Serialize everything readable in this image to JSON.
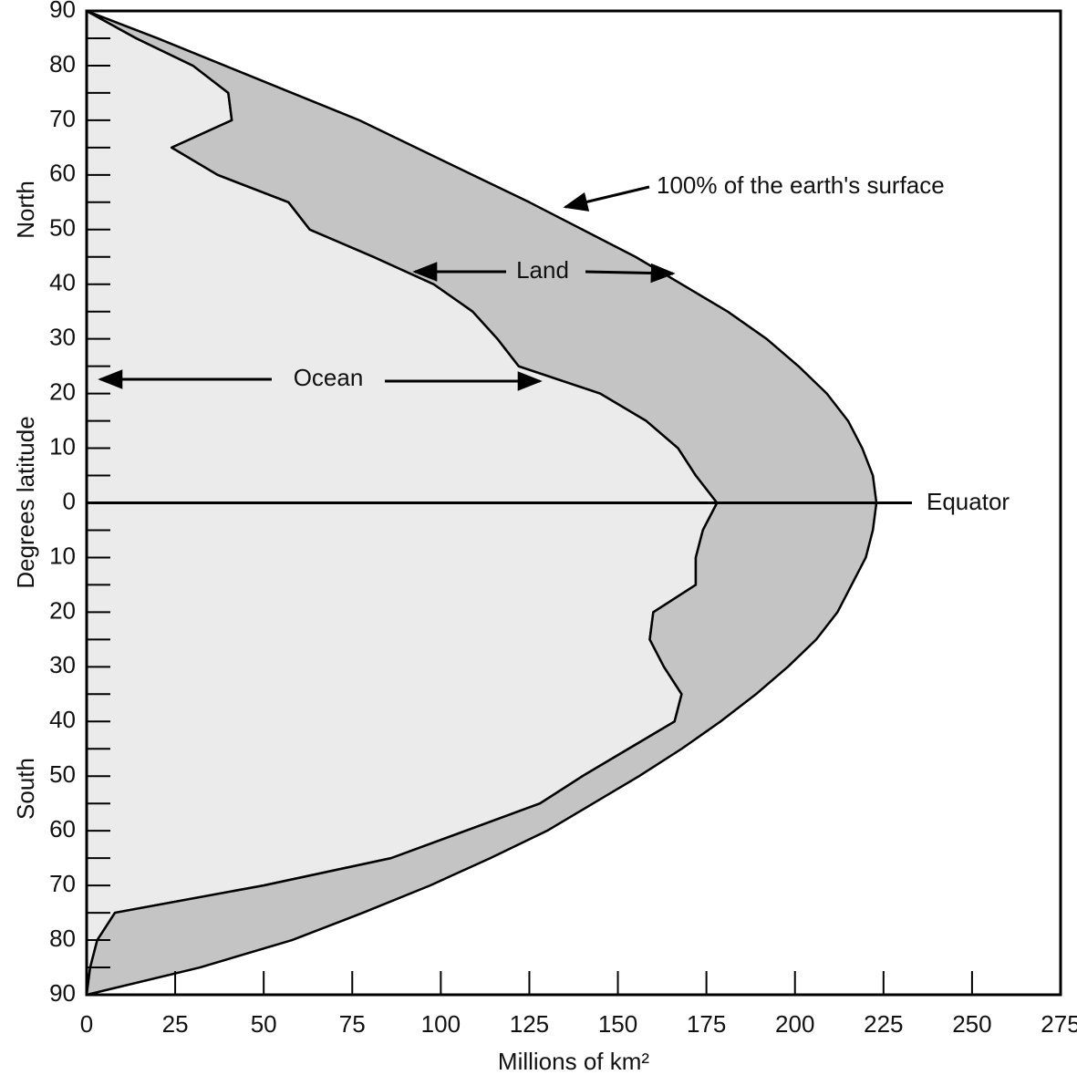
{
  "chart_data": {
    "type": "stacked-area-horizontal",
    "x_label": "Millions of km²",
    "y_label": "Degrees latitude",
    "y_label_top": "North",
    "y_label_bottom": "South",
    "annotations": [
      "100% of the earth's surface",
      "Equator"
    ],
    "y": [
      90,
      85,
      80,
      75,
      70,
      65,
      60,
      55,
      50,
      45,
      40,
      35,
      30,
      25,
      20,
      15,
      10,
      5,
      0,
      -5,
      -10,
      -15,
      -20,
      -25,
      -30,
      -35,
      -40,
      -45,
      -50,
      -55,
      -60,
      -65,
      -70,
      -75,
      -80,
      -85,
      -90
    ],
    "series": [
      {
        "name": "Ocean",
        "color": "#ebebeb",
        "values": [
          0,
          14,
          30,
          40,
          41,
          24,
          37,
          57,
          63,
          81,
          98,
          109,
          116,
          122,
          145,
          158,
          167,
          172,
          178,
          174,
          172,
          172,
          160,
          159,
          163,
          168,
          166,
          153,
          140,
          128,
          107,
          86,
          50,
          8,
          3,
          1,
          0
        ]
      },
      {
        "name": "Land",
        "color": "#c4c4c4",
        "values": [
          0,
          6,
          9,
          18,
          36,
          69,
          72,
          68,
          77,
          74,
          70,
          72,
          76,
          79,
          64,
          57,
          52,
          50,
          45,
          48,
          48,
          44,
          52,
          47,
          35,
          21,
          13,
          15,
          16,
          15,
          23,
          28,
          47,
          70,
          55,
          31,
          0
        ]
      }
    ],
    "xlim": [
      0,
      275
    ],
    "xticks": [
      0,
      25,
      50,
      75,
      100,
      125,
      150,
      175,
      200,
      225,
      250,
      275
    ],
    "ylim": [
      -90,
      90
    ],
    "yticks": [
      90,
      80,
      70,
      60,
      50,
      40,
      30,
      20,
      10,
      0,
      {
        "value": -10,
        "label": "10"
      },
      {
        "value": -20,
        "label": "20"
      },
      {
        "value": -30,
        "label": "30"
      },
      {
        "value": -40,
        "label": "40"
      },
      {
        "value": -50,
        "label": "50"
      },
      {
        "value": -60,
        "label": "60"
      },
      {
        "value": -70,
        "label": "70"
      },
      {
        "value": -80,
        "label": "80"
      },
      {
        "value": -90,
        "label": "90"
      }
    ],
    "yminorticks": [
      85,
      75,
      65,
      55,
      45,
      35,
      25,
      15,
      5,
      -5,
      -15,
      -25,
      -35,
      -45,
      -55,
      -65,
      -75,
      -85
    ]
  }
}
